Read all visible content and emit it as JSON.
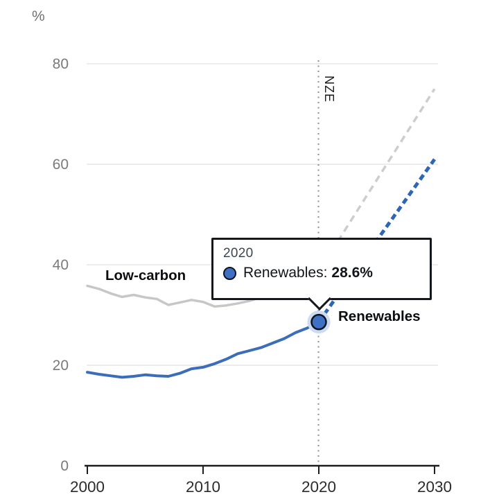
{
  "figure": {
    "unit_label": "%"
  },
  "annotations": {
    "nze_label": "NZE",
    "low_carbon_label": "Low-carbon",
    "renewables_label": "Renewables"
  },
  "tooltip": {
    "year": "2020",
    "series_label": "Renewables:",
    "value": "28.6%"
  },
  "colors": {
    "renewables_line": "#3b6db9",
    "renewables_projection": "#2f66b4",
    "low_carbon_line": "#c7c7c7",
    "low_carbon_projection": "#caced1",
    "marker_fill": "#3e71c3",
    "marker_stroke": "#0c1320",
    "marker_halo": "#ccdbf2",
    "grid_line": "#e5e5e5",
    "axis_line": "#1c1c1c",
    "x_tick_label": "#2b2b2b",
    "y_tick_label": "#7a7a7a",
    "nze_dotted_line": "#8d8d8d"
  },
  "chart_data": {
    "type": "line",
    "title": "",
    "xlabel": "",
    "ylabel": "%",
    "ylim": [
      0,
      80
    ],
    "xlim": [
      2000,
      2030
    ],
    "grid": true,
    "y_ticks": [
      0,
      20,
      40,
      60,
      80
    ],
    "x_ticks": [
      2000,
      2010,
      2020,
      2030
    ],
    "annotation_line": {
      "x": 2020,
      "label": "NZE",
      "style": "dotted"
    },
    "series": [
      {
        "name": "Low-carbon (historical)",
        "style": "solid",
        "color": "#c7c7c7",
        "width": 3.5,
        "x": [
          2000,
          2001,
          2002,
          2003,
          2004,
          2005,
          2006,
          2007,
          2008,
          2009,
          2010,
          2011,
          2012,
          2013,
          2014,
          2015,
          2016,
          2017,
          2018,
          2019,
          2020
        ],
        "values": [
          35.8,
          35.2,
          34.3,
          33.6,
          34.0,
          33.5,
          33.2,
          32.0,
          32.5,
          33.0,
          32.6,
          31.7,
          31.9,
          32.3,
          32.8,
          33.5,
          34.4,
          35.3,
          36.3,
          37.5,
          38.7
        ]
      },
      {
        "name": "Low-carbon (NZE projection)",
        "style": "dashed",
        "color": "#caced1",
        "width": 3.5,
        "x": [
          2020,
          2030
        ],
        "values": [
          38.7,
          75.0
        ]
      },
      {
        "name": "Renewables (historical)",
        "style": "solid",
        "color": "#3b6db9",
        "width": 4,
        "x": [
          2000,
          2001,
          2002,
          2003,
          2004,
          2005,
          2006,
          2007,
          2008,
          2009,
          2010,
          2011,
          2012,
          2013,
          2014,
          2015,
          2016,
          2017,
          2018,
          2019,
          2020
        ],
        "values": [
          18.6,
          18.2,
          17.9,
          17.6,
          17.8,
          18.1,
          17.9,
          17.8,
          18.4,
          19.3,
          19.6,
          20.3,
          21.2,
          22.3,
          22.9,
          23.5,
          24.4,
          25.3,
          26.5,
          27.4,
          28.6
        ]
      },
      {
        "name": "Renewables (NZE projection)",
        "style": "dashed",
        "color": "#2f66b4",
        "width": 5,
        "x": [
          2020,
          2030
        ],
        "values": [
          28.6,
          61.0
        ]
      }
    ],
    "marker": {
      "x": 2020,
      "value": 28.6,
      "series": "Renewables"
    }
  }
}
